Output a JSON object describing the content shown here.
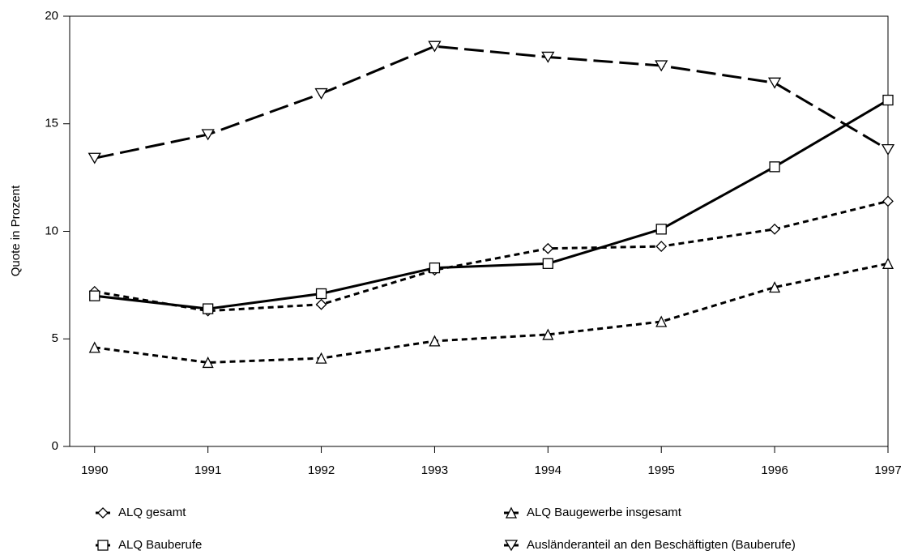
{
  "chart_data": {
    "type": "line",
    "y_label": "Quote in Prozent",
    "x": [
      1990,
      1991,
      1992,
      1993,
      1994,
      1995,
      1996,
      1997
    ],
    "xlim": [
      1989.78,
      1997
    ],
    "xticks": [
      1990,
      1991,
      1992,
      1993,
      1994,
      1995,
      1996,
      1997
    ],
    "ylim": [
      0,
      20
    ],
    "yticks": [
      0,
      5,
      10,
      15,
      20
    ],
    "series": [
      {
        "name": "ALQ gesamt",
        "color": "#000000",
        "marker": "diamond",
        "dash": "7,5",
        "values": [
          7.2,
          6.3,
          6.6,
          8.2,
          9.2,
          9.3,
          10.1,
          11.4
        ]
      },
      {
        "name": "ALQ Baugewerbe insgesamt",
        "color": "#000000",
        "marker": "triangle-up",
        "dash": "7,5",
        "values": [
          4.6,
          3.9,
          4.1,
          4.9,
          5.2,
          5.8,
          7.4,
          8.5
        ]
      },
      {
        "name": "ALQ Bauberufe",
        "color": "#000000",
        "marker": "square",
        "dash": "none",
        "values": [
          7.0,
          6.4,
          7.1,
          8.3,
          8.5,
          10.1,
          13.0,
          16.1
        ]
      },
      {
        "name": "Ausländeranteil an den Beschäftigten (Bauberufe)",
        "color": "#000000",
        "marker": "triangle-down",
        "dash": "24,8",
        "values": [
          13.4,
          14.5,
          16.4,
          18.6,
          18.1,
          17.7,
          16.9,
          13.8
        ]
      }
    ]
  }
}
